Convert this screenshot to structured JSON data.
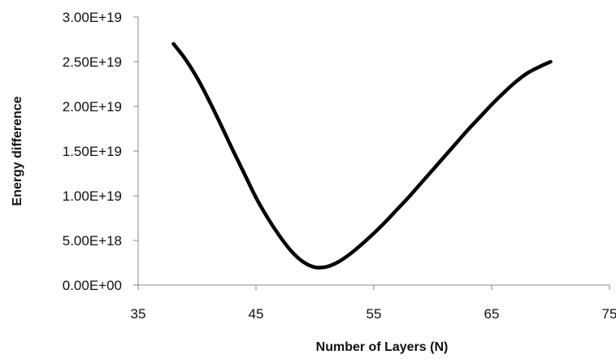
{
  "chart_data": {
    "type": "line",
    "title": "",
    "xlabel": "Number of Layers (N)",
    "ylabel": "Energy difference",
    "xlim": [
      35,
      75
    ],
    "ylim": [
      0,
      3e+19
    ],
    "x_ticks": [
      35,
      45,
      55,
      65,
      75
    ],
    "x_tick_labels": [
      "35",
      "45",
      "55",
      "65",
      "75"
    ],
    "y_ticks": [
      0,
      5e+18,
      1e+19,
      1.5e+19,
      2e+19,
      2.5e+19,
      3e+19
    ],
    "y_tick_labels": [
      "0.00E+00",
      "5.00E+18",
      "1.00E+19",
      "1.50E+19",
      "2.00E+19",
      "2.50E+19",
      "3.00E+19"
    ],
    "grid": false,
    "legend": "none",
    "series": [
      {
        "x": [
          38,
          39,
          40,
          41,
          42,
          43,
          44,
          45,
          46,
          47,
          48,
          49,
          50,
          51,
          52,
          53,
          54,
          55,
          56,
          57,
          58,
          59,
          60,
          61,
          62,
          63,
          64,
          65,
          66,
          67,
          68,
          69,
          70
        ],
        "y": [
          2.7e+19,
          2.53e+19,
          2.32e+19,
          2.07e+19,
          1.8e+19,
          1.52e+19,
          1.25e+19,
          9.8e+18,
          7.5e+18,
          5.5e+18,
          3.8e+18,
          2.6e+18,
          2e+18,
          2.05e+18,
          2.6e+18,
          3.5e+18,
          4.6e+18,
          5.8e+18,
          7.1e+18,
          8.5e+18,
          9.9e+18,
          1.14e+19,
          1.29e+19,
          1.44e+19,
          1.59e+19,
          1.74e+19,
          1.88e+19,
          2.02e+19,
          2.15e+19,
          2.27e+19,
          2.37e+19,
          2.44e+19,
          2.5e+19
        ],
        "color": "#000000"
      }
    ]
  }
}
